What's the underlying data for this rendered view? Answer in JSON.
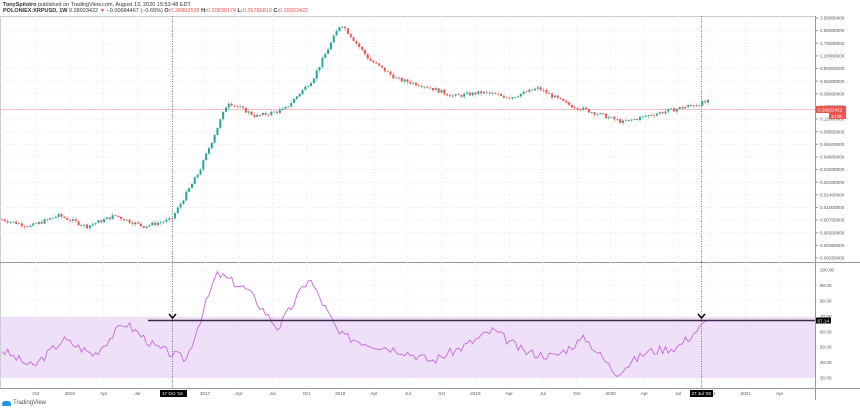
{
  "header": {
    "author": "TonySpilotro",
    "published": "published on TradingView.com, August 13, 2020 15:53:48 EDT",
    "symbol": "POLONIEX:XRPUSD, 1W",
    "last": "0.28023422",
    "arrow": "▼",
    "change": "−0.00684467 (−0.65%)",
    "o_label": "O:",
    "o_value": "0.28802538",
    "h_label": "H:",
    "h_value": "0.30830174",
    "l_label": "L:",
    "l_value": "0.26789810",
    "c_label": "C:",
    "c_value": "0.28023422"
  },
  "colors": {
    "up": "#26a69a",
    "down": "#ef5350",
    "rsi_line": "#c46bd6",
    "rsi_band": "#e9d5f7",
    "trendline": "#3d2a4f",
    "grid": "#e6eaee"
  },
  "price_axis": {
    "labels": [
      "3.50000000",
      "2.50000000",
      "1.75000000",
      "1.20000000",
      "0.80000000",
      "0.55000000",
      "0.38000000",
      "0.17000000",
      "0.12000000",
      "0.08500000",
      "0.06400000",
      "0.04600000",
      "0.03200000",
      "0.02200000",
      "0.01400000",
      "0.01000000",
      "0.00700000",
      "0.00500000",
      "0.00360000",
      "0.00250000"
    ],
    "current_price_label": "0.28023422",
    "countdown_label": "1d 5h"
  },
  "rsi_axis": {
    "labels": [
      "100.00",
      "90.00",
      "80.00",
      "70.00",
      "60.00",
      "50.00",
      "40.00",
      "30.00"
    ],
    "current_label": "67.14"
  },
  "time_axis": {
    "labels": [
      "Oct",
      "2016",
      "Apr",
      "Jul",
      "Oct",
      "2017",
      "Apr",
      "Jul",
      "Oct",
      "2018",
      "Apr",
      "Jul",
      "Oct",
      "2019",
      "Apr",
      "Jul",
      "Oct",
      "2020",
      "Apr",
      "Jul",
      "Oct",
      "2021",
      "Apr"
    ],
    "marker1": "17 Oct '16",
    "marker2": "27 Jul '20"
  },
  "footer": {
    "brand": "TradingView"
  },
  "chart_data": [
    {
      "type": "candlestick",
      "title": "POLONIEX:XRPUSD, 1W",
      "xlabel": "",
      "ylabel": "Price (USD, log scale)",
      "scale": "log",
      "x": [
        "2015-10",
        "2016-01",
        "2016-04",
        "2016-07",
        "2016-10",
        "2017-01",
        "2017-03",
        "2017-04",
        "2017-05",
        "2017-07",
        "2017-10",
        "2017-12",
        "2018-01",
        "2018-02",
        "2018-04",
        "2018-07",
        "2018-09",
        "2018-12",
        "2019-04",
        "2019-06",
        "2019-09",
        "2019-12",
        "2020-03",
        "2020-05",
        "2020-07",
        "2020-08"
      ],
      "close_approx": [
        0.008,
        0.0065,
        0.009,
        0.0065,
        0.009,
        0.0065,
        0.008,
        0.035,
        0.28,
        0.18,
        0.22,
        0.55,
        3.0,
        1.0,
        0.55,
        0.45,
        0.33,
        0.37,
        0.32,
        0.42,
        0.26,
        0.2,
        0.15,
        0.19,
        0.23,
        0.28
      ],
      "grid": true
    },
    {
      "type": "line",
      "title": "RSI (14)",
      "ylabel": "RSI",
      "ylim": [
        30,
        100
      ],
      "band": [
        30,
        70
      ],
      "x": [
        "2015-10",
        "2016-01",
        "2016-04",
        "2016-07",
        "2016-10",
        "2017-01",
        "2017-03",
        "2017-05",
        "2017-07",
        "2017-10",
        "2017-12",
        "2018-01",
        "2018-04",
        "2018-07",
        "2018-10",
        "2019-01",
        "2019-04",
        "2019-06",
        "2019-09",
        "2019-12",
        "2020-03",
        "2020-05",
        "2020-07",
        "2020-08"
      ],
      "values": [
        48,
        37,
        55,
        45,
        66,
        50,
        42,
        98,
        87,
        62,
        95,
        58,
        52,
        48,
        41,
        50,
        61,
        47,
        44,
        56,
        33,
        47,
        50,
        67.14
      ],
      "annotations": [
        {
          "type": "horizontal_line",
          "y": 67.14,
          "from": "2016-10",
          "to": "2020-08"
        },
        {
          "type": "marker",
          "x": "2016-10",
          "label": "17 Oct '16"
        },
        {
          "type": "marker",
          "x": "2020-07",
          "label": "27 Jul '20"
        }
      ],
      "grid": true
    }
  ]
}
